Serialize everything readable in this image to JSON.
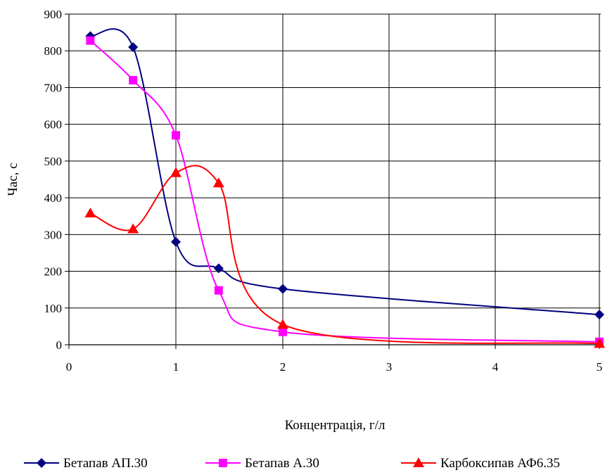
{
  "chart_data": {
    "type": "line",
    "xlabel": "Концентрація, г/л",
    "ylabel": "Час, с",
    "x_categories": [
      "0",
      "1",
      "2",
      "3",
      "4",
      "5"
    ],
    "ylim": [
      0,
      900
    ],
    "yticks": [
      0,
      100,
      200,
      300,
      400,
      500,
      600,
      700,
      800,
      900
    ],
    "grid": true,
    "legend_position": "bottom",
    "series": [
      {
        "name": "Бетапав АП.30",
        "color": "#000080",
        "marker": "diamond",
        "x": [
          0.2,
          0.6,
          1,
          1.4,
          2,
          5
        ],
        "y": [
          840,
          810,
          280,
          208,
          152,
          82
        ]
      },
      {
        "name": "Бетапав А.30",
        "color": "#ff00ff",
        "marker": "square",
        "x": [
          0.2,
          0.6,
          1,
          1.4,
          2,
          5
        ],
        "y": [
          828,
          720,
          570,
          148,
          35,
          8
        ]
      },
      {
        "name": "Карбоксипав АФ6.35",
        "color": "#ff0000",
        "marker": "triangle",
        "x": [
          0.2,
          0.6,
          1,
          1.4,
          2,
          5
        ],
        "y": [
          358,
          315,
          468,
          440,
          55,
          3
        ]
      }
    ]
  }
}
